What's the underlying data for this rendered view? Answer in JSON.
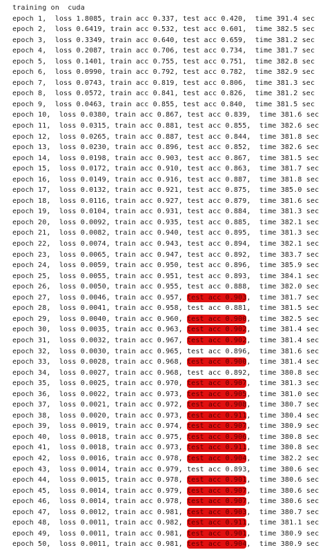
{
  "header": "training on  cuda",
  "highlight_color": "#e01010",
  "lines": [
    {
      "pre": "epoch 1,  loss 1.8085, train acc 0.337, ",
      "acc": "test acc 0.420",
      "post": ",  time 391.4 sec",
      "hl": false
    },
    {
      "pre": "epoch 2,  loss 0.6419, train acc 0.532, ",
      "acc": "test acc 0.601",
      "post": ",  time 382.5 sec",
      "hl": false
    },
    {
      "pre": "epoch 3,  loss 0.3349, train acc 0.640, ",
      "acc": "test acc 0.659",
      "post": ",  time 381.2 sec",
      "hl": false
    },
    {
      "pre": "epoch 4,  loss 0.2087, train acc 0.706, ",
      "acc": "test acc 0.734",
      "post": ",  time 381.7 sec",
      "hl": false
    },
    {
      "pre": "epoch 5,  loss 0.1401, train acc 0.755, ",
      "acc": "test acc 0.751",
      "post": ",  time 382.8 sec",
      "hl": false
    },
    {
      "pre": "epoch 6,  loss 0.0990, train acc 0.792, ",
      "acc": "test acc 0.782",
      "post": ",  time 382.9 sec",
      "hl": false
    },
    {
      "pre": "epoch 7,  loss 0.0743, train acc 0.819, ",
      "acc": "test acc 0.806",
      "post": ",  time 381.3 sec",
      "hl": false
    },
    {
      "pre": "epoch 8,  loss 0.0572, train acc 0.841, ",
      "acc": "test acc 0.826",
      "post": ",  time 381.2 sec",
      "hl": false
    },
    {
      "pre": "epoch 9,  loss 0.0463, train acc 0.855, ",
      "acc": "test acc 0.840",
      "post": ",  time 381.5 sec",
      "hl": false
    },
    {
      "pre": "epoch 10,  loss 0.0380, train acc 0.867, ",
      "acc": "test acc 0.839",
      "post": ",  time 381.6 sec",
      "hl": false
    },
    {
      "pre": "epoch 11,  loss 0.0315, train acc 0.881, ",
      "acc": "test acc 0.855",
      "post": ",  time 382.6 sec",
      "hl": false
    },
    {
      "pre": "epoch 12,  loss 0.0265, train acc 0.887, ",
      "acc": "test acc 0.844",
      "post": ",  time 381.8 sec",
      "hl": false
    },
    {
      "pre": "epoch 13,  loss 0.0230, train acc 0.896, ",
      "acc": "test acc 0.852",
      "post": ",  time 382.6 sec",
      "hl": false
    },
    {
      "pre": "epoch 14,  loss 0.0198, train acc 0.903, ",
      "acc": "test acc 0.867",
      "post": ",  time 381.5 sec",
      "hl": false
    },
    {
      "pre": "epoch 15,  loss 0.0172, train acc 0.910, ",
      "acc": "test acc 0.863",
      "post": ",  time 381.7 sec",
      "hl": false
    },
    {
      "pre": "epoch 16,  loss 0.0149, train acc 0.916, ",
      "acc": "test acc 0.887",
      "post": ",  time 381.8 sec",
      "hl": false
    },
    {
      "pre": "epoch 17,  loss 0.0132, train acc 0.921, ",
      "acc": "test acc 0.875",
      "post": ",  time 385.0 sec",
      "hl": false
    },
    {
      "pre": "epoch 18,  loss 0.0116, train acc 0.927, ",
      "acc": "test acc 0.879",
      "post": ",  time 381.6 sec",
      "hl": false
    },
    {
      "pre": "epoch 19,  loss 0.0104, train acc 0.931, ",
      "acc": "test acc 0.884",
      "post": ",  time 381.3 sec",
      "hl": false
    },
    {
      "pre": "epoch 20,  loss 0.0092, train acc 0.935, ",
      "acc": "test acc 0.885",
      "post": ",  time 382.1 sec",
      "hl": false
    },
    {
      "pre": "epoch 21,  loss 0.0082, train acc 0.940, ",
      "acc": "test acc 0.895",
      "post": ",  time 381.3 sec",
      "hl": false
    },
    {
      "pre": "epoch 22,  loss 0.0074, train acc 0.943, ",
      "acc": "test acc 0.894",
      "post": ",  time 382.1 sec",
      "hl": false
    },
    {
      "pre": "epoch 23,  loss 0.0065, train acc 0.947, ",
      "acc": "test acc 0.892",
      "post": ",  time 383.7 sec",
      "hl": false
    },
    {
      "pre": "epoch 24,  loss 0.0059, train acc 0.950, ",
      "acc": "test acc 0.896",
      "post": ",  time 385.9 sec",
      "hl": false
    },
    {
      "pre": "epoch 25,  loss 0.0055, train acc 0.951, ",
      "acc": "test acc 0.893",
      "post": ",  time 384.1 sec",
      "hl": false
    },
    {
      "pre": "epoch 26,  loss 0.0050, train acc 0.955, ",
      "acc": "test acc 0.888",
      "post": ",  time 382.0 sec",
      "hl": false
    },
    {
      "pre": "epoch 27,  loss 0.0046, train acc 0.957, ",
      "acc": "test acc 0.903",
      "post": ",  time 381.7 sec",
      "hl": true
    },
    {
      "pre": "epoch 28,  loss 0.0041, train acc 0.958, ",
      "acc": "test acc 0.881",
      "post": ",  time 381.5 sec",
      "hl": false
    },
    {
      "pre": "epoch 29,  loss 0.0040, train acc 0.960, ",
      "acc": "test acc 0.900",
      "post": ",  time 382.5 sec",
      "hl": true
    },
    {
      "pre": "epoch 30,  loss 0.0035, train acc 0.963, ",
      "acc": "test acc 0.902",
      "post": ",  time 381.4 sec",
      "hl": true
    },
    {
      "pre": "epoch 31,  loss 0.0032, train acc 0.967, ",
      "acc": "test acc 0.902",
      "post": ",  time 381.4 sec",
      "hl": true
    },
    {
      "pre": "epoch 32,  loss 0.0030, train acc 0.965, ",
      "acc": "test acc 0.896",
      "post": ",  time 381.6 sec",
      "hl": false
    },
    {
      "pre": "epoch 33,  loss 0.0028, train acc 0.968, ",
      "acc": "test acc 0.900",
      "post": ",  time 381.4 sec",
      "hl": true
    },
    {
      "pre": "epoch 34,  loss 0.0027, train acc 0.968, ",
      "acc": "test acc 0.892",
      "post": ",  time 380.8 sec",
      "hl": false
    },
    {
      "pre": "epoch 35,  loss 0.0025, train acc 0.970, ",
      "acc": "test acc 0.907",
      "post": ",  time 381.3 sec",
      "hl": true
    },
    {
      "pre": "epoch 36,  loss 0.0022, train acc 0.973, ",
      "acc": "test acc 0.905",
      "post": ",  time 381.0 sec",
      "hl": true
    },
    {
      "pre": "epoch 37,  loss 0.0021, train acc 0.972, ",
      "acc": "test acc 0.908",
      "post": ",  time 380.7 sec",
      "hl": true
    },
    {
      "pre": "epoch 38,  loss 0.0020, train acc 0.973, ",
      "acc": "test acc 0.911",
      "post": ",  time 380.4 sec",
      "hl": true
    },
    {
      "pre": "epoch 39,  loss 0.0019, train acc 0.974, ",
      "acc": "test acc 0.907",
      "post": ",  time 380.9 sec",
      "hl": true
    },
    {
      "pre": "epoch 40,  loss 0.0018, train acc 0.975, ",
      "acc": "test acc 0.906",
      "post": ",  time 380.8 sec",
      "hl": true
    },
    {
      "pre": "epoch 41,  loss 0.0018, train acc 0.973, ",
      "acc": "test acc 0.911",
      "post": ",  time 380.8 sec",
      "hl": true
    },
    {
      "pre": "epoch 42,  loss 0.0016, train acc 0.978, ",
      "acc": "test acc 0.904",
      "post": ",  time 382.2 sec",
      "hl": true
    },
    {
      "pre": "epoch 43,  loss 0.0014, train acc 0.979, ",
      "acc": "test acc 0.893",
      "post": ",  time 380.6 sec",
      "hl": false
    },
    {
      "pre": "epoch 44,  loss 0.0015, train acc 0.978, ",
      "acc": "test acc 0.901",
      "post": ",  time 380.6 sec",
      "hl": true
    },
    {
      "pre": "epoch 45,  loss 0.0014, train acc 0.979, ",
      "acc": "test acc 0.907",
      "post": ",  time 380.6 sec",
      "hl": true
    },
    {
      "pre": "epoch 46,  loss 0.0014, train acc 0.978, ",
      "acc": "test acc 0.907",
      "post": ",  time 380.6 sec",
      "hl": true
    },
    {
      "pre": "epoch 47,  loss 0.0012, train acc 0.981, ",
      "acc": "test acc 0.903",
      "post": ",  time 380.7 sec",
      "hl": true
    },
    {
      "pre": "epoch 48,  loss 0.0011, train acc 0.982, ",
      "acc": "test acc 0.911",
      "post": ",  time 381.1 sec",
      "hl": true
    },
    {
      "pre": "epoch 49,  loss 0.0011, train acc 0.981, ",
      "acc": "test acc 0.901",
      "post": ",  time 380.9 sec",
      "hl": true
    },
    {
      "pre": "epoch 50,  loss 0.0011, train acc 0.981, ",
      "acc": "test acc 0.904",
      "post": ",  time 380.9 sec",
      "hl": true
    }
  ]
}
